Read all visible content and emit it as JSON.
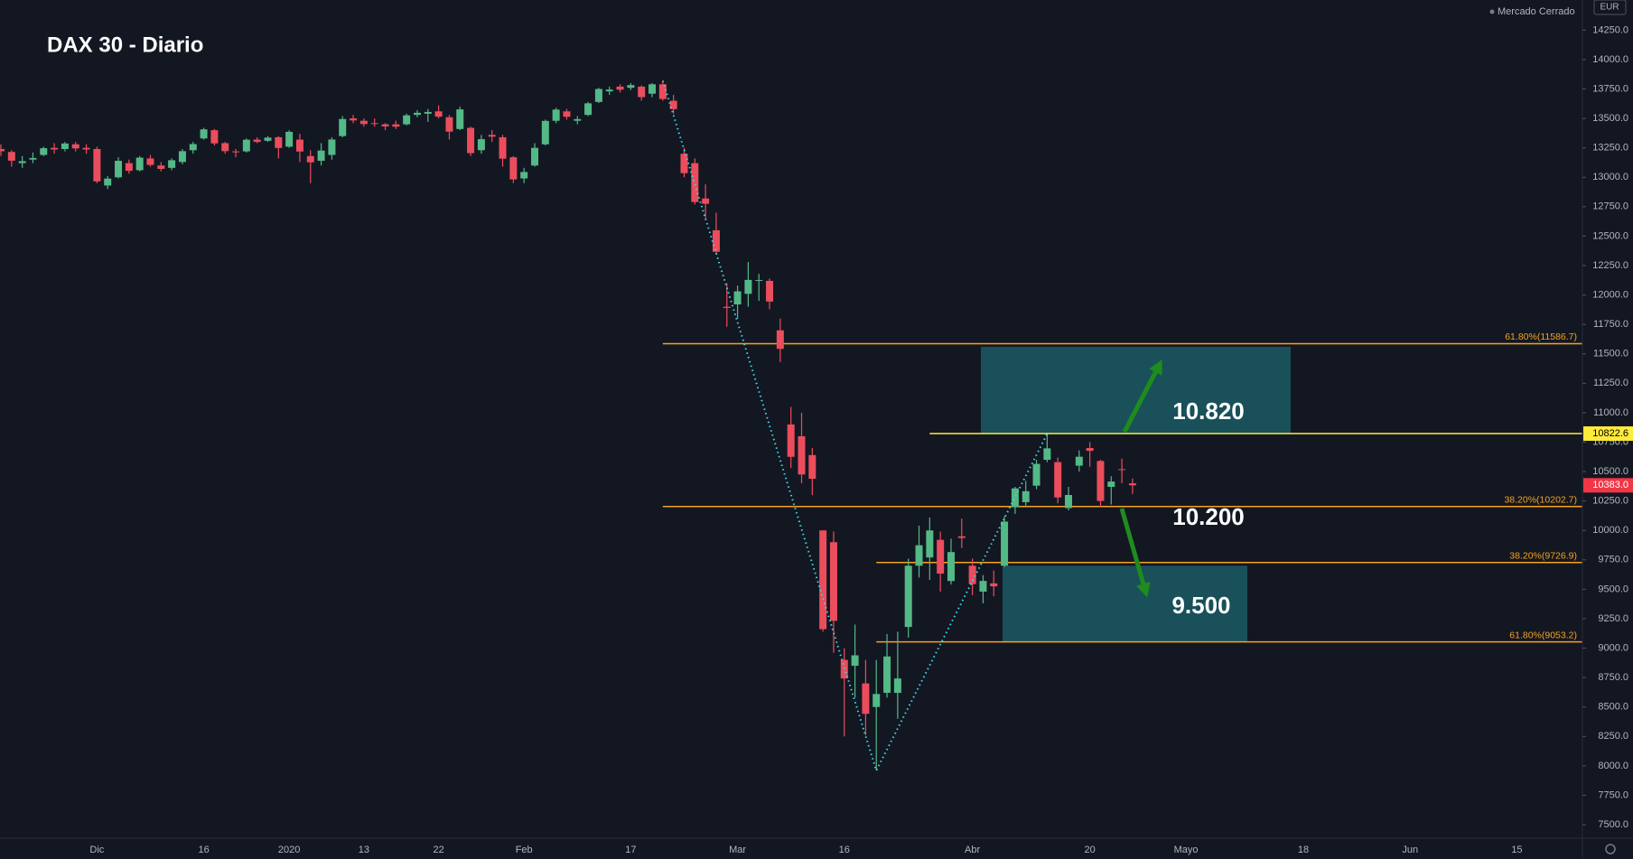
{
  "chart_data": {
    "type": "candlestick",
    "title": "DAX 30 - Diario",
    "status": "Mercado Cerrado",
    "currency": "EUR",
    "up_color": "#53b987",
    "down_color": "#eb4d5c",
    "ylim": [
      7385,
      14506
    ],
    "yticks": [
      {
        "value": 7500,
        "label": "7500.0"
      },
      {
        "value": 7750,
        "label": "7750.0"
      },
      {
        "value": 8000,
        "label": "8000.0"
      },
      {
        "value": 8250,
        "label": "8250.0"
      },
      {
        "value": 8500,
        "label": "8500.0"
      },
      {
        "value": 8750,
        "label": "8750.0"
      },
      {
        "value": 9000,
        "label": "9000.0"
      },
      {
        "value": 9250,
        "label": "9250.0"
      },
      {
        "value": 9500,
        "label": "9500.0"
      },
      {
        "value": 9750,
        "label": "9750.0"
      },
      {
        "value": 10000,
        "label": "10000.0"
      },
      {
        "value": 10250,
        "label": "10250.0"
      },
      {
        "value": 10500,
        "label": "10500.0"
      },
      {
        "value": 10750,
        "label": "10750.0"
      },
      {
        "value": 11000,
        "label": "11000.0"
      },
      {
        "value": 11250,
        "label": "11250.0"
      },
      {
        "value": 11500,
        "label": "11500.0"
      },
      {
        "value": 11750,
        "label": "11750.0"
      },
      {
        "value": 12000,
        "label": "12000.0"
      },
      {
        "value": 12250,
        "label": "12250.0"
      },
      {
        "value": 12500,
        "label": "12500.0"
      },
      {
        "value": 12750,
        "label": "12750.0"
      },
      {
        "value": 13000,
        "label": "13000.0"
      },
      {
        "value": 13250,
        "label": "13250.0"
      },
      {
        "value": 13500,
        "label": "13500.0"
      },
      {
        "value": 13750,
        "label": "13750.0"
      },
      {
        "value": 14000,
        "label": "14000.0"
      },
      {
        "value": 14250,
        "label": "14250.0"
      }
    ],
    "categories": [
      null,
      null,
      null,
      null,
      null,
      null,
      null,
      null,
      null,
      "Dic",
      null,
      null,
      null,
      null,
      null,
      null,
      null,
      null,
      null,
      "16",
      null,
      null,
      null,
      null,
      null,
      null,
      null,
      "2020",
      null,
      null,
      null,
      null,
      null,
      null,
      "13",
      null,
      null,
      null,
      null,
      null,
      null,
      "22",
      null,
      null,
      null,
      null,
      null,
      null,
      null,
      "Feb",
      null,
      null,
      null,
      null,
      null,
      null,
      null,
      null,
      null,
      "17",
      null,
      null,
      null,
      null,
      null,
      null,
      null,
      null,
      null,
      "Mar",
      null,
      null,
      null,
      null,
      null,
      null,
      null,
      null,
      null,
      "16",
      null,
      null,
      null,
      null,
      null,
      null,
      null,
      null,
      null,
      null,
      null,
      "Abr",
      null,
      null,
      null,
      null,
      null,
      null,
      null,
      null,
      null,
      null,
      "20",
      null,
      null,
      null,
      null,
      null,
      null,
      null,
      null,
      "Mayo",
      null,
      null,
      null,
      null,
      null,
      null,
      null,
      null,
      null,
      null,
      "18",
      null,
      null,
      null,
      null,
      null,
      null,
      null,
      null,
      null,
      "Jun",
      null,
      null,
      null,
      null,
      null,
      null,
      null,
      null,
      null,
      "15",
      null,
      null,
      null,
      null,
      null
    ],
    "open": [
      13240,
      13215,
      13120,
      13150,
      13190,
      13250,
      13240,
      13280,
      13250,
      13240,
      12930,
      13000,
      13120,
      13060,
      13160,
      13100,
      13080,
      13130,
      13230,
      13330,
      13400,
      13290,
      13220,
      13220,
      13320,
      13310,
      13340,
      13260,
      13320,
      13180,
      13140,
      13190,
      13350,
      13500,
      13480,
      13460,
      13450,
      13450,
      13450,
      13530,
      13540,
      13560,
      13510,
      13410,
      13420,
      13230,
      13360,
      13340,
      13170,
      12990,
      13100,
      13280,
      13480,
      13560,
      13480,
      13530,
      13640,
      13730,
      13770,
      13760,
      13770,
      13710,
      13790,
      13650,
      13200,
      13120,
      12820,
      12550,
      11900,
      11920,
      12010,
      12120,
      12120,
      11700,
      10900,
      10800,
      10640,
      10000,
      9900,
      8900,
      8850,
      8700,
      8500,
      8620,
      8620,
      9180,
      9700,
      9770,
      9920,
      9570,
      9950,
      9700,
      9480,
      9550,
      9700,
      10200,
      10240,
      10380,
      10600,
      10580,
      10190,
      10550,
      10700,
      10590,
      10370,
      10520,
      10400,
      null,
      null,
      null,
      null,
      null,
      null,
      null,
      null,
      null,
      null,
      null,
      null,
      null,
      null,
      null,
      null,
      null,
      null,
      null,
      null,
      null,
      null,
      null,
      null,
      null,
      null,
      null,
      null,
      null,
      null,
      null,
      null,
      null,
      null,
      null,
      null,
      null,
      null,
      null,
      null,
      null
    ],
    "high": [
      13280,
      13230,
      13180,
      13210,
      13260,
      13290,
      13300,
      13300,
      13280,
      13260,
      13010,
      13170,
      13150,
      13180,
      13190,
      13130,
      13160,
      13240,
      13300,
      13420,
      13410,
      13300,
      13240,
      13330,
      13340,
      13350,
      13350,
      13400,
      13370,
      13230,
      13290,
      13340,
      13520,
      13530,
      13500,
      13500,
      13460,
      13480,
      13540,
      13570,
      13580,
      13610,
      13530,
      13600,
      13430,
      13360,
      13400,
      13360,
      13180,
      13080,
      13290,
      13490,
      13590,
      13580,
      13520,
      13640,
      13760,
      13770,
      13790,
      13800,
      13780,
      13800,
      13820,
      13700,
      13250,
      13160,
      12940,
      12700,
      12100,
      12080,
      12280,
      12180,
      12140,
      11800,
      11050,
      11000,
      10700,
      10000,
      9990,
      9000,
      9200,
      8900,
      8900,
      9120,
      9140,
      9760,
      10040,
      10110,
      9990,
      9930,
      10100,
      9760,
      9620,
      9660,
      10120,
      10370,
      10420,
      10600,
      10820,
      10620,
      10370,
      10680,
      10750,
      10600,
      10460,
      10610,
      10440,
      null,
      null,
      null,
      null,
      null,
      null,
      null,
      null,
      null,
      null,
      null,
      null,
      null,
      null,
      null,
      null,
      null,
      null,
      null,
      null,
      null,
      null,
      null,
      null,
      null,
      null,
      null,
      null,
      null,
      null,
      null,
      null,
      null,
      null,
      null,
      null,
      null,
      null,
      null,
      null,
      null
    ],
    "low": [
      13180,
      13090,
      13080,
      13120,
      13180,
      13200,
      13220,
      13220,
      13200,
      12950,
      12900,
      12990,
      13030,
      13050,
      13090,
      13050,
      13060,
      13110,
      13200,
      13320,
      13270,
      13200,
      13170,
      13210,
      13290,
      13300,
      13160,
      13250,
      13130,
      12950,
      13100,
      13150,
      13340,
      13460,
      13430,
      13430,
      13400,
      13410,
      13440,
      13510,
      13470,
      13500,
      13320,
      13400,
      13180,
      13200,
      13300,
      13090,
      12950,
      12950,
      13090,
      13270,
      13460,
      13490,
      13450,
      13520,
      13630,
      13700,
      13720,
      13740,
      13650,
      13680,
      13650,
      13540,
      13000,
      12770,
      12650,
      12350,
      11730,
      11800,
      11900,
      11950,
      11880,
      11430,
      10530,
      10400,
      10300,
      9140,
      8960,
      8250,
      8580,
      8260,
      7960,
      8580,
      8400,
      9090,
      9600,
      9580,
      9480,
      9540,
      9850,
      9450,
      9380,
      9440,
      9690,
      10140,
      10200,
      10350,
      10580,
      10230,
      10170,
      10500,
      10540,
      10200,
      10220,
      10400,
      10310,
      null,
      null,
      null,
      null,
      null,
      null,
      null,
      null,
      null,
      null,
      null,
      null,
      null,
      null,
      null,
      null,
      null,
      null,
      null,
      null,
      null,
      null,
      null,
      null,
      null,
      null,
      null,
      null,
      null,
      null,
      null,
      null,
      null,
      null,
      null,
      null,
      null,
      null,
      null,
      null,
      null
    ],
    "close": [
      13221,
      13141,
      13137,
      13164,
      13247,
      13236,
      13287,
      13245,
      13236,
      12965,
      12989,
      13140,
      13055,
      13167,
      13105,
      13071,
      13145,
      13222,
      13282,
      13407,
      13288,
      13222,
      13212,
      13319,
      13300,
      13337,
      13249,
      13386,
      13219,
      13127,
      13227,
      13321,
      13495,
      13483,
      13452,
      13456,
      13432,
      13430,
      13526,
      13548,
      13555,
      13515,
      13388,
      13577,
      13205,
      13324,
      13345,
      13158,
      12982,
      13045,
      13250,
      13479,
      13575,
      13514,
      13494,
      13628,
      13750,
      13745,
      13744,
      13783,
      13681,
      13790,
      13665,
      13579,
      13035,
      12790,
      12775,
      12367,
      11890,
      12031,
      12128,
      12127,
      11944,
      11542,
      10625,
      10475,
      10439,
      9161,
      9232,
      8742,
      8939,
      8442,
      8610,
      8929,
      8742,
      9700,
      9874,
      10000,
      9633,
      9816,
      9936,
      9544,
      9571,
      9525,
      10075,
      10357,
      10333,
      10565,
      10697,
      10280,
      10301,
      10626,
      10676,
      10250,
      10415,
      10514,
      10383,
      null,
      null,
      null,
      null,
      null,
      null,
      null,
      null,
      null,
      null,
      null,
      null,
      null,
      null,
      null,
      null,
      null,
      null,
      null,
      null,
      null,
      null,
      null,
      null,
      null,
      null,
      null,
      null,
      null,
      null,
      null,
      null,
      null,
      null,
      null,
      null,
      null,
      null,
      null,
      null,
      null
    ],
    "levels": [
      {
        "value": 11586.7,
        "label": "61.80%(11586.7)",
        "color": "#f7a21b"
      },
      {
        "value": 10202.7,
        "label": "38.20%(10202.7)",
        "color": "#f7a21b"
      },
      {
        "value": 9726.9,
        "label": "38.20%(9726.9)",
        "color": "#f7a21b"
      },
      {
        "value": 9053.2,
        "label": "61.80%(9053.2)",
        "color": "#f7a21b"
      }
    ],
    "price_tags": [
      {
        "value": 10822.6,
        "label": "10822.6",
        "color": "#ffeb3b",
        "line": true
      },
      {
        "value": 10383,
        "label": "10383.0",
        "color": "#f23645",
        "line": false
      }
    ],
    "zones": [
      {
        "low": 10822.6,
        "high": 11560
      },
      {
        "low": 9053.2,
        "high": 9700
      }
    ],
    "zone_color": "#1b5a63",
    "zigzag_color": "#3fd6e8",
    "annotations": [
      "10.820",
      "10.200",
      "9.500"
    ]
  }
}
